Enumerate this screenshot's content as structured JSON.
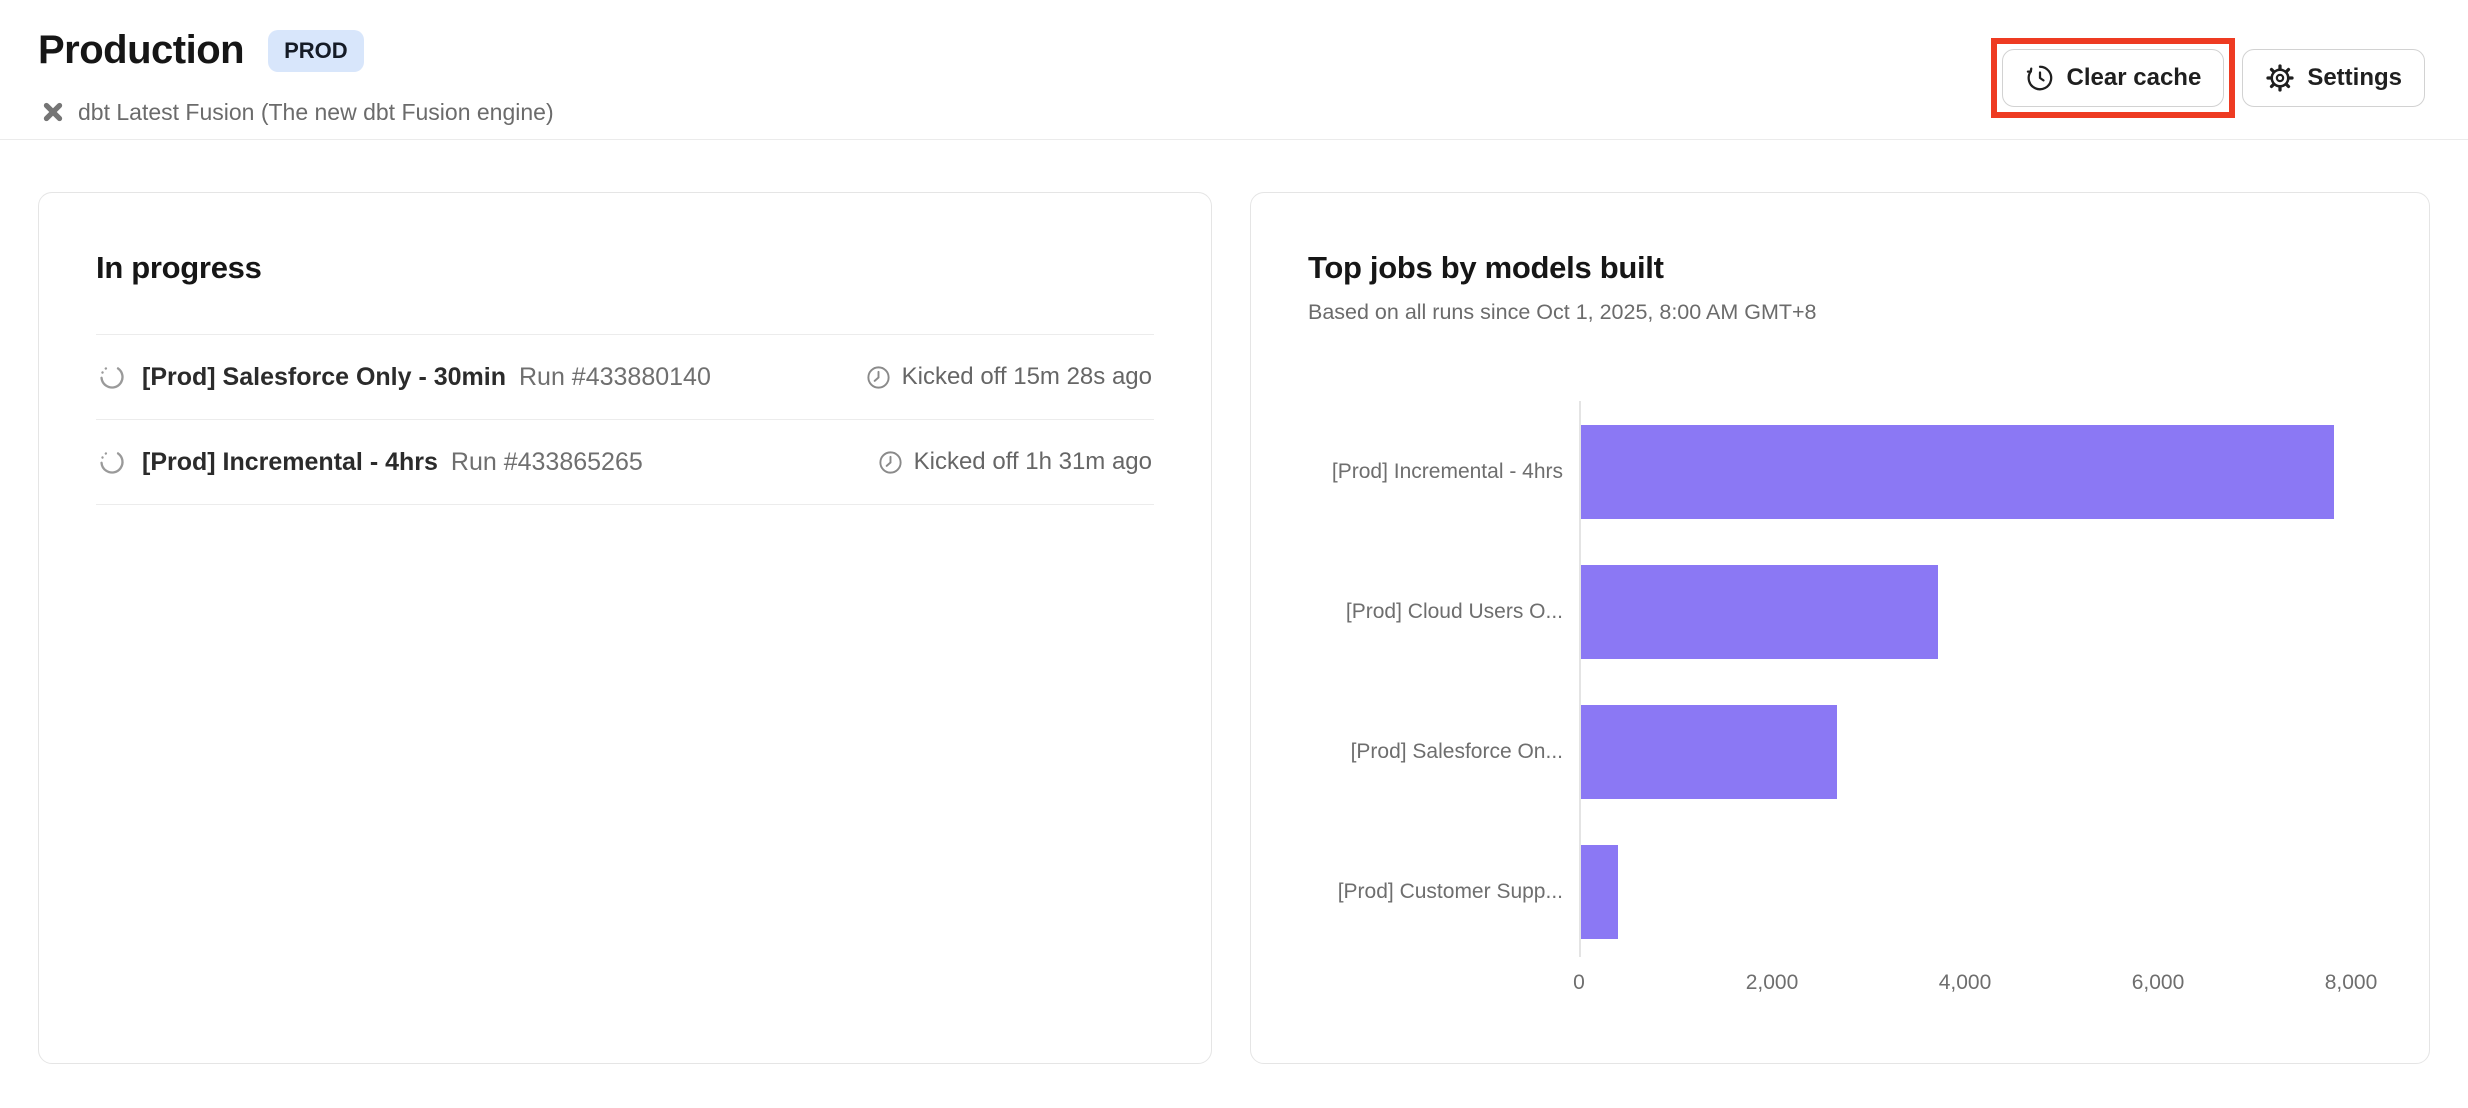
{
  "header": {
    "title": "Production",
    "badge": "PROD",
    "subtitle": "dbt Latest Fusion (The new dbt Fusion engine)",
    "actions": {
      "clear_cache": "Clear cache",
      "settings": "Settings"
    }
  },
  "in_progress": {
    "title": "In progress",
    "rows": [
      {
        "name": "[Prod] Salesforce Only - 30min",
        "run": "Run #433880140",
        "kicked_off": "Kicked off 15m 28s ago",
        "status": "running"
      },
      {
        "name": "[Prod] Incremental - 4hrs",
        "run": "Run #433865265",
        "kicked_off": "Kicked off 1h 31m ago",
        "status": "running"
      }
    ]
  },
  "chart_data": {
    "type": "bar",
    "orientation": "horizontal",
    "title": "Top jobs by models built",
    "subtitle": "Based on all runs since Oct 1, 2025, 8:00 AM GMT+8",
    "categories": [
      "[Prod] Incremental - 4hrs",
      "[Prod] Cloud Users O...",
      "[Prod] Salesforce On...",
      "[Prod] Customer Supp..."
    ],
    "values": [
      7800,
      3700,
      2650,
      380
    ],
    "xlim": [
      0,
      8000
    ],
    "xticks": [
      0,
      2000,
      4000,
      6000,
      8000
    ],
    "xtick_labels": [
      "0",
      "2,000",
      "4,000",
      "6,000",
      "8,000"
    ],
    "grid": false,
    "legend": false
  },
  "colors": {
    "bar": "#8b78f4",
    "badge_bg": "#d8e6fb",
    "annotation": "#ee3b22",
    "icon_gray": "#757575"
  }
}
